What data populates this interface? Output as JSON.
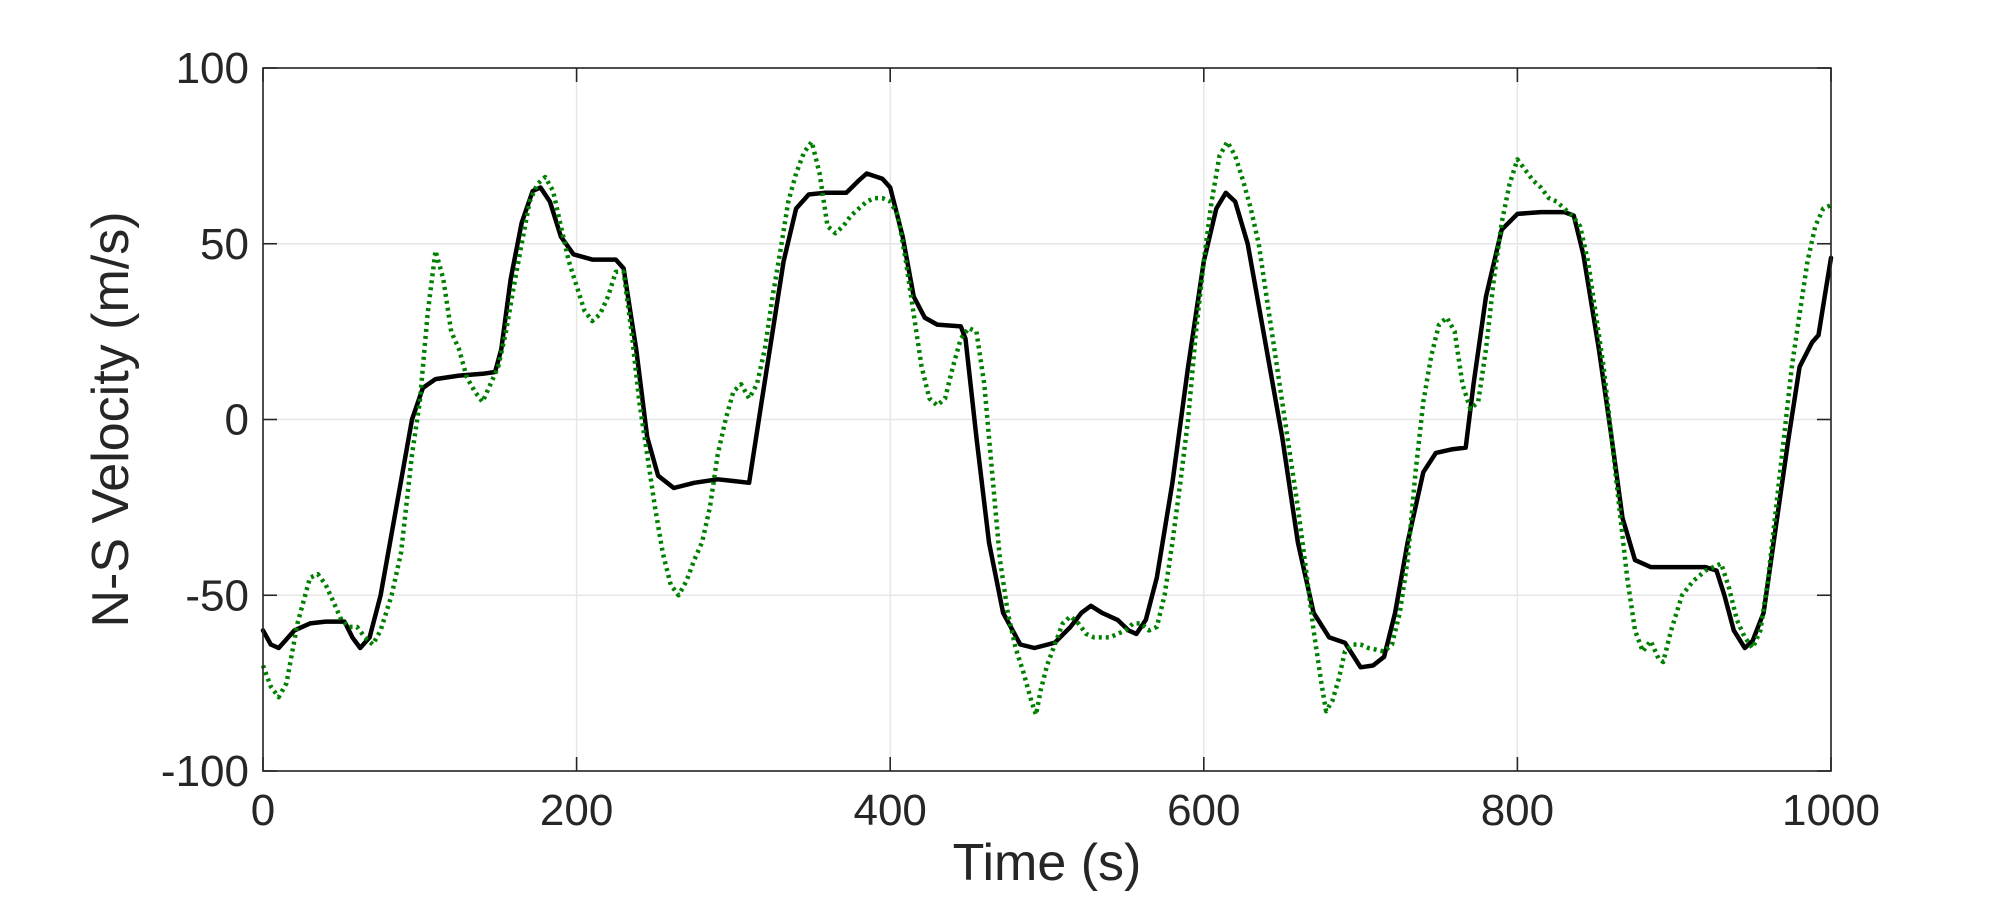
{
  "chart_data": {
    "type": "line",
    "title": "",
    "xlabel": "Time (s)",
    "ylabel": "N-S Velocity (m/s)",
    "xlim": [
      0,
      1000
    ],
    "ylim": [
      -100,
      100
    ],
    "xticks": [
      0,
      200,
      400,
      600,
      800,
      1000
    ],
    "yticks": [
      -100,
      -50,
      0,
      50,
      100
    ],
    "xtick_labels": [
      "0",
      "200",
      "400",
      "600",
      "800",
      "1000"
    ],
    "ytick_labels": [
      "-100",
      "-50",
      "0",
      "50",
      "100"
    ],
    "grid": true,
    "legend": "none",
    "series": [
      {
        "style": "solid",
        "color": "#000000",
        "points": [
          [
            0,
            -60
          ],
          [
            5,
            -64
          ],
          [
            10,
            -65
          ],
          [
            20,
            -60
          ],
          [
            30,
            -58
          ],
          [
            40,
            -57.5
          ],
          [
            52,
            -57.5
          ],
          [
            57,
            -62
          ],
          [
            62,
            -65
          ],
          [
            68,
            -62
          ],
          [
            75,
            -50
          ],
          [
            85,
            -25
          ],
          [
            95,
            0
          ],
          [
            102,
            9
          ],
          [
            110,
            11.5
          ],
          [
            125,
            12.5
          ],
          [
            140,
            13
          ],
          [
            148,
            13.5
          ],
          [
            152,
            20
          ],
          [
            158,
            40
          ],
          [
            165,
            56
          ],
          [
            172,
            65
          ],
          [
            177,
            66
          ],
          [
            183,
            62
          ],
          [
            190,
            52
          ],
          [
            198,
            47
          ],
          [
            210,
            45.5
          ],
          [
            225,
            45.5
          ],
          [
            230,
            43
          ],
          [
            238,
            20
          ],
          [
            245,
            -5
          ],
          [
            252,
            -16
          ],
          [
            262,
            -19.5
          ],
          [
            275,
            -18
          ],
          [
            290,
            -17
          ],
          [
            300,
            -17.5
          ],
          [
            310,
            -18
          ],
          [
            318,
            5
          ],
          [
            325,
            25
          ],
          [
            332,
            45
          ],
          [
            340,
            60
          ],
          [
            348,
            64
          ],
          [
            358,
            64.5
          ],
          [
            372,
            64.5
          ],
          [
            380,
            68
          ],
          [
            385,
            70
          ],
          [
            395,
            68.5
          ],
          [
            400,
            66
          ],
          [
            408,
            52
          ],
          [
            415,
            35
          ],
          [
            422,
            29
          ],
          [
            430,
            27
          ],
          [
            445,
            26.5
          ],
          [
            448,
            23
          ],
          [
            455,
            -5
          ],
          [
            463,
            -35
          ],
          [
            472,
            -55
          ],
          [
            483,
            -64
          ],
          [
            492,
            -65
          ],
          [
            505,
            -63.5
          ],
          [
            515,
            -59
          ],
          [
            522,
            -55
          ],
          [
            528,
            -53
          ],
          [
            535,
            -55
          ],
          [
            545,
            -57
          ],
          [
            552,
            -60
          ],
          [
            557,
            -61
          ],
          [
            563,
            -57
          ],
          [
            570,
            -45
          ],
          [
            580,
            -18
          ],
          [
            590,
            15
          ],
          [
            600,
            45
          ],
          [
            608,
            60
          ],
          [
            614,
            64.5
          ],
          [
            620,
            62
          ],
          [
            628,
            50
          ],
          [
            638,
            25
          ],
          [
            650,
            -5
          ],
          [
            660,
            -35
          ],
          [
            670,
            -55
          ],
          [
            680,
            -62
          ],
          [
            690,
            -63.5
          ],
          [
            695,
            -67
          ],
          [
            700,
            -70.5
          ],
          [
            708,
            -70
          ],
          [
            715,
            -67.5
          ],
          [
            722,
            -55
          ],
          [
            730,
            -35
          ],
          [
            740,
            -15
          ],
          [
            748,
            -9.5
          ],
          [
            758,
            -8.5
          ],
          [
            767,
            -8
          ],
          [
            772,
            10
          ],
          [
            780,
            35
          ],
          [
            790,
            54
          ],
          [
            800,
            58.5
          ],
          [
            815,
            59
          ],
          [
            830,
            59
          ],
          [
            836,
            58
          ],
          [
            842,
            47
          ],
          [
            852,
            20
          ],
          [
            860,
            -5
          ],
          [
            867,
            -28
          ],
          [
            875,
            -40
          ],
          [
            885,
            -42
          ],
          [
            900,
            -42
          ],
          [
            920,
            -42
          ],
          [
            927,
            -43
          ],
          [
            932,
            -50
          ],
          [
            938,
            -60
          ],
          [
            945,
            -65
          ],
          [
            950,
            -63
          ],
          [
            957,
            -55
          ],
          [
            965,
            -30
          ],
          [
            973,
            -5
          ],
          [
            980,
            15
          ],
          [
            988,
            22
          ],
          [
            992,
            24
          ],
          [
            996,
            35
          ],
          [
            1000,
            46
          ]
        ]
      },
      {
        "style": "dotted",
        "color": "#008000",
        "points": [
          [
            0,
            -70
          ],
          [
            5,
            -76
          ],
          [
            10,
            -79
          ],
          [
            15,
            -75
          ],
          [
            22,
            -58
          ],
          [
            30,
            -45
          ],
          [
            35,
            -44
          ],
          [
            40,
            -47
          ],
          [
            45,
            -52
          ],
          [
            50,
            -57
          ],
          [
            55,
            -59
          ],
          [
            60,
            -59
          ],
          [
            65,
            -62
          ],
          [
            70,
            -64
          ],
          [
            75,
            -60
          ],
          [
            82,
            -50
          ],
          [
            88,
            -38
          ],
          [
            95,
            -10
          ],
          [
            100,
            5
          ],
          [
            105,
            30
          ],
          [
            110,
            48
          ],
          [
            115,
            40
          ],
          [
            120,
            25
          ],
          [
            125,
            20
          ],
          [
            130,
            12
          ],
          [
            135,
            8
          ],
          [
            140,
            5
          ],
          [
            145,
            10
          ],
          [
            150,
            15
          ],
          [
            155,
            25
          ],
          [
            160,
            38
          ],
          [
            165,
            50
          ],
          [
            170,
            62
          ],
          [
            175,
            67
          ],
          [
            180,
            69
          ],
          [
            185,
            65
          ],
          [
            190,
            55
          ],
          [
            195,
            45
          ],
          [
            200,
            38
          ],
          [
            205,
            31
          ],
          [
            210,
            28
          ],
          [
            215,
            30
          ],
          [
            220,
            35
          ],
          [
            225,
            42
          ],
          [
            230,
            42
          ],
          [
            235,
            25
          ],
          [
            240,
            5
          ],
          [
            245,
            -10
          ],
          [
            250,
            -25
          ],
          [
            255,
            -38
          ],
          [
            260,
            -47
          ],
          [
            265,
            -50
          ],
          [
            270,
            -46
          ],
          [
            275,
            -40
          ],
          [
            280,
            -35
          ],
          [
            285,
            -25
          ],
          [
            290,
            -10
          ],
          [
            295,
            0
          ],
          [
            300,
            8
          ],
          [
            305,
            10
          ],
          [
            310,
            6
          ],
          [
            315,
            10
          ],
          [
            320,
            20
          ],
          [
            325,
            35
          ],
          [
            330,
            48
          ],
          [
            335,
            62
          ],
          [
            340,
            70
          ],
          [
            345,
            76
          ],
          [
            350,
            79
          ],
          [
            355,
            70
          ],
          [
            360,
            55
          ],
          [
            365,
            53
          ],
          [
            370,
            55
          ],
          [
            375,
            58
          ],
          [
            380,
            60
          ],
          [
            385,
            62
          ],
          [
            390,
            63
          ],
          [
            395,
            63
          ],
          [
            400,
            62
          ],
          [
            405,
            58
          ],
          [
            410,
            45
          ],
          [
            415,
            30
          ],
          [
            420,
            15
          ],
          [
            425,
            6
          ],
          [
            430,
            4
          ],
          [
            435,
            6
          ],
          [
            440,
            15
          ],
          [
            445,
            23
          ],
          [
            450,
            26
          ],
          [
            455,
            25
          ],
          [
            460,
            10
          ],
          [
            465,
            -15
          ],
          [
            470,
            -40
          ],
          [
            475,
            -55
          ],
          [
            480,
            -65
          ],
          [
            485,
            -72
          ],
          [
            490,
            -80
          ],
          [
            493,
            -84
          ],
          [
            496,
            -77
          ],
          [
            500,
            -70
          ],
          [
            505,
            -64
          ],
          [
            510,
            -58
          ],
          [
            515,
            -56
          ],
          [
            520,
            -58
          ],
          [
            525,
            -61
          ],
          [
            530,
            -62
          ],
          [
            540,
            -62
          ],
          [
            550,
            -60
          ],
          [
            555,
            -58
          ],
          [
            560,
            -58
          ],
          [
            565,
            -60
          ],
          [
            570,
            -59
          ],
          [
            575,
            -50
          ],
          [
            580,
            -35
          ],
          [
            585,
            -18
          ],
          [
            590,
            0
          ],
          [
            595,
            25
          ],
          [
            600,
            45
          ],
          [
            605,
            62
          ],
          [
            610,
            75
          ],
          [
            615,
            79
          ],
          [
            620,
            75
          ],
          [
            625,
            68
          ],
          [
            630,
            60
          ],
          [
            635,
            50
          ],
          [
            640,
            35
          ],
          [
            645,
            20
          ],
          [
            650,
            5
          ],
          [
            655,
            -10
          ],
          [
            660,
            -25
          ],
          [
            665,
            -42
          ],
          [
            670,
            -60
          ],
          [
            675,
            -75
          ],
          [
            678,
            -83
          ],
          [
            682,
            -80
          ],
          [
            686,
            -74
          ],
          [
            690,
            -66
          ],
          [
            695,
            -64
          ],
          [
            700,
            -64
          ],
          [
            705,
            -65
          ],
          [
            710,
            -65.5
          ],
          [
            715,
            -66
          ],
          [
            720,
            -64
          ],
          [
            725,
            -55
          ],
          [
            730,
            -40
          ],
          [
            735,
            -15
          ],
          [
            740,
            5
          ],
          [
            745,
            18
          ],
          [
            750,
            27
          ],
          [
            755,
            29
          ],
          [
            760,
            25
          ],
          [
            765,
            10
          ],
          [
            770,
            3
          ],
          [
            775,
            5
          ],
          [
            780,
            20
          ],
          [
            785,
            40
          ],
          [
            790,
            56
          ],
          [
            795,
            67
          ],
          [
            800,
            74
          ],
          [
            805,
            71
          ],
          [
            810,
            68
          ],
          [
            815,
            66
          ],
          [
            820,
            63
          ],
          [
            825,
            62
          ],
          [
            830,
            60
          ],
          [
            835,
            58
          ],
          [
            840,
            55
          ],
          [
            845,
            45
          ],
          [
            850,
            30
          ],
          [
            855,
            15
          ],
          [
            860,
            -5
          ],
          [
            865,
            -25
          ],
          [
            870,
            -45
          ],
          [
            875,
            -60
          ],
          [
            880,
            -66
          ],
          [
            885,
            -63
          ],
          [
            890,
            -68
          ],
          [
            893,
            -69
          ],
          [
            898,
            -60
          ],
          [
            905,
            -50
          ],
          [
            912,
            -46
          ],
          [
            920,
            -43
          ],
          [
            925,
            -42
          ],
          [
            930,
            -41
          ],
          [
            935,
            -48
          ],
          [
            940,
            -57
          ],
          [
            945,
            -62
          ],
          [
            950,
            -65
          ],
          [
            955,
            -60
          ],
          [
            960,
            -45
          ],
          [
            965,
            -25
          ],
          [
            970,
            -5
          ],
          [
            975,
            15
          ],
          [
            980,
            30
          ],
          [
            985,
            45
          ],
          [
            990,
            55
          ],
          [
            995,
            60
          ],
          [
            1000,
            61
          ]
        ]
      }
    ]
  }
}
